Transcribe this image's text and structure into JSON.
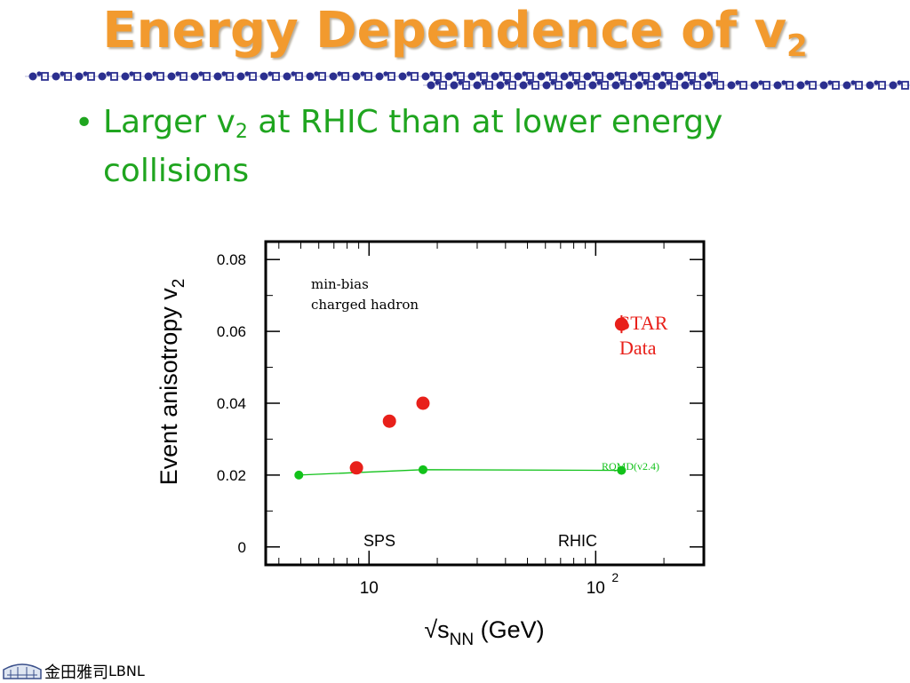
{
  "slide": {
    "title_main": "Energy Dependence of v",
    "title_sub": "2",
    "bullet_pre": "Larger v",
    "bullet_sub": "2",
    "bullet_post": " at RHIC than at lower energy collisions",
    "footer_lab": "LBNL",
    "footer_mark": "金田雅司"
  },
  "colors": {
    "title": "#f29a2e",
    "bullet": "#1fa51f",
    "band": "#2b2f8f",
    "star": "#e8201a",
    "rqmd": "#12c21a"
  },
  "chart_data": {
    "type": "scatter",
    "x_scale": "log",
    "xlim": [
      3.5,
      300
    ],
    "ylim": [
      -0.005,
      0.085
    ],
    "ylabel": "Event anisotropy v",
    "ylabel_sub": "2",
    "xlabel": "√s",
    "xlabel_sub": "NN",
    "xlabel_unit": " (GeV)",
    "yticks": [
      {
        "value": 0,
        "label": "0"
      },
      {
        "value": 0.02,
        "label": "0.02"
      },
      {
        "value": 0.04,
        "label": "0.04"
      },
      {
        "value": 0.06,
        "label": "0.06"
      },
      {
        "value": 0.08,
        "label": "0.08"
      }
    ],
    "xticks": [
      {
        "value": 10,
        "label": "10",
        "exp": ""
      },
      {
        "value": 100,
        "label": "10",
        "exp": "2"
      }
    ],
    "annotations": {
      "note_line1": "min-bias",
      "note_line2": "charged hadron",
      "star_line1": "STAR",
      "star_line2": "Data",
      "rqmd_label": "RQMD(v2.4)",
      "sps_label": "SPS",
      "rhic_label": "RHIC"
    },
    "series": [
      {
        "name": "STAR Data",
        "style": "points",
        "points": [
          {
            "x": 8.8,
            "y": 0.022,
            "err": 0
          },
          {
            "x": 12.3,
            "y": 0.035,
            "err": 0
          },
          {
            "x": 17.3,
            "y": 0.04,
            "err": 0
          },
          {
            "x": 130,
            "y": 0.062,
            "err": 0.0025
          }
        ]
      },
      {
        "name": "RQMD(v2.4)",
        "style": "line-points",
        "points": [
          {
            "x": 4.9,
            "y": 0.02
          },
          {
            "x": 17.3,
            "y": 0.0215
          },
          {
            "x": 130,
            "y": 0.0213
          }
        ]
      }
    ]
  }
}
